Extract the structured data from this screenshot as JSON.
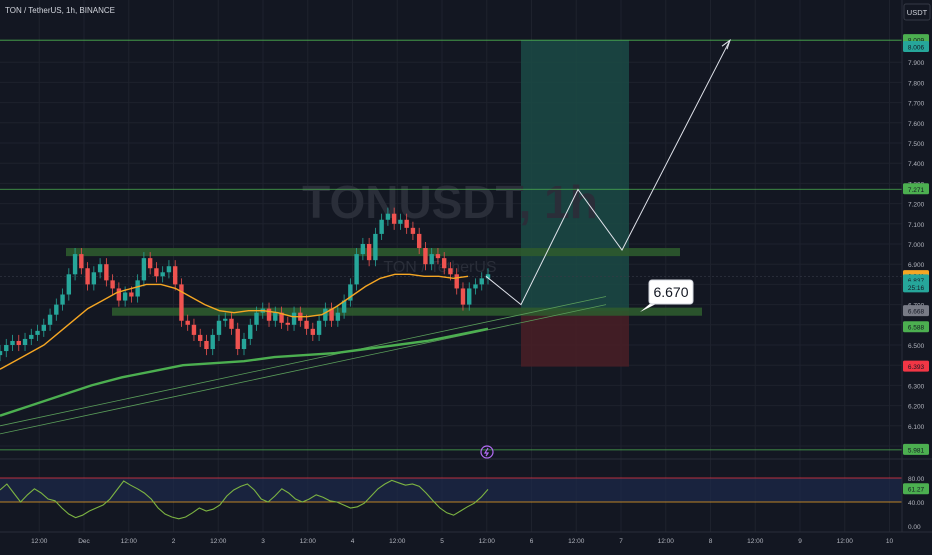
{
  "header": {
    "title": "TON / TetherUS, 1h, BINANCE",
    "currency": "USDT"
  },
  "watermark": {
    "symbol": "TONUSDT, 1h",
    "description": "TON / TetherUS"
  },
  "colors": {
    "background": "#131722",
    "grid": "#1e222d",
    "bull_candle": "#26a69a",
    "bear_candle": "#ef5350",
    "ema_fast": "#f5a623",
    "ema_slow": "#4caf50",
    "zone": "#2e5a2e",
    "target_zone": "#1b4a45",
    "stop_zone": "#4a1f26",
    "rsi_line": "#7cb342",
    "projection": "#e0e3eb"
  },
  "annotation": {
    "entry_label": "6.670",
    "event_icon": "lightning-icon"
  },
  "chart_data": {
    "type": "line",
    "title": "TON / TetherUS, 1h, BINANCE",
    "xlabel": "",
    "ylabel": "USDT",
    "ylim": [
      5.98,
      8.02
    ],
    "x_ticks": [
      "12:00",
      "Dec",
      "12:00",
      "2",
      "12:00",
      "3",
      "12:00",
      "4",
      "12:00",
      "5",
      "12:00",
      "6",
      "12:00",
      "7",
      "12:00",
      "8",
      "12:00",
      "9",
      "12:00",
      "10"
    ],
    "y_ticks": [
      "7.900",
      "7.800",
      "7.700",
      "7.600",
      "7.500",
      "7.400",
      "7.300",
      "7.200",
      "7.100",
      "7.000",
      "6.900",
      "6.800",
      "6.700",
      "6.600",
      "6.500",
      "6.400",
      "6.300",
      "6.200",
      "6.100",
      "6.000"
    ],
    "price_series": {
      "name": "",
      "values": [
        6.47,
        6.5,
        6.52,
        6.5,
        6.53,
        6.55,
        6.57,
        6.6,
        6.65,
        6.7,
        6.75,
        6.85,
        6.95,
        6.88,
        6.8,
        6.86,
        6.9,
        6.82,
        6.78,
        6.72,
        6.76,
        6.74,
        6.82,
        6.93,
        6.88,
        6.84,
        6.86,
        6.89,
        6.8,
        6.62,
        6.6,
        6.55,
        6.52,
        6.48,
        6.55,
        6.62,
        6.63,
        6.58,
        6.48,
        6.53,
        6.6,
        6.66,
        6.68,
        6.62,
        6.66,
        6.61,
        6.6,
        6.66,
        6.62,
        6.58,
        6.55,
        6.62,
        6.68,
        6.62,
        6.66,
        6.72,
        6.8,
        6.95,
        7.0,
        6.92,
        7.05,
        7.12,
        7.15,
        7.1,
        7.12,
        7.08,
        7.05,
        6.98,
        6.9,
        6.95,
        6.93,
        6.88,
        6.85,
        6.78,
        6.7,
        6.78,
        6.8,
        6.83,
        6.85
      ]
    },
    "ema_fast": {
      "name": "",
      "values": [
        6.38,
        6.42,
        6.46,
        6.5,
        6.56,
        6.62,
        6.68,
        6.72,
        6.76,
        6.78,
        6.8,
        6.8,
        6.78,
        6.74,
        6.7,
        6.67,
        6.66,
        6.67,
        6.67,
        6.66,
        6.64,
        6.64,
        6.65,
        6.69,
        6.74,
        6.79,
        6.83,
        6.85,
        6.85,
        6.84,
        6.84,
        6.83,
        6.84
      ]
    },
    "ema_slow": {
      "name": "",
      "values": [
        6.15,
        6.2,
        6.25,
        6.3,
        6.34,
        6.37,
        6.4,
        6.41,
        6.42,
        6.44,
        6.45,
        6.46,
        6.48,
        6.5,
        6.52,
        6.55,
        6.58
      ]
    },
    "levels": [
      {
        "label": "8.009",
        "value": 8.009,
        "color": "#4caf50"
      },
      {
        "label": "8.006",
        "value": 7.975,
        "color": "#26a69a"
      },
      {
        "label": "7.271",
        "value": 7.271,
        "color": "#4caf50"
      },
      {
        "label": "6.841",
        "value": 6.841,
        "color": "#f5a623"
      },
      {
        "label": "6.837",
        "value": 6.82,
        "color": "#26a69a"
      },
      {
        "label": "25:16",
        "value": 6.785,
        "color": "#26a69a"
      },
      {
        "label": "6.668",
        "value": 6.668,
        "color": "#787b86"
      },
      {
        "label": "6.588",
        "value": 6.588,
        "color": "#4caf50"
      },
      {
        "label": "6.393",
        "value": 6.393,
        "color": "#f23645"
      },
      {
        "label": "5.981",
        "value": 5.981,
        "color": "#4caf50"
      }
    ],
    "resistance_zone": [
      6.94,
      6.98
    ],
    "support_zone": [
      6.645,
      6.685
    ],
    "target_zone": [
      6.67,
      8.009
    ],
    "stop_zone": [
      6.393,
      6.67
    ],
    "projection_path": [
      {
        "x": "5 12:00",
        "y": 6.7
      },
      {
        "x": "6 12:00",
        "y": 7.27
      },
      {
        "x": "7",
        "y": 6.97
      },
      {
        "x": "7 12:00",
        "y": 8.009
      }
    ],
    "rsi": {
      "ylim": [
        0,
        100
      ],
      "y_ticks": [
        "80.00",
        "40.00",
        "0.00"
      ],
      "current_label": "61.27",
      "upper_band": 80,
      "lower_band": 40,
      "values": [
        60,
        70,
        55,
        40,
        52,
        62,
        55,
        45,
        42,
        30,
        20,
        14,
        18,
        25,
        30,
        35,
        45,
        60,
        75,
        68,
        62,
        55,
        45,
        30,
        20,
        15,
        12,
        15,
        22,
        30,
        25,
        28,
        35,
        50,
        60,
        66,
        70,
        60,
        45,
        40,
        50,
        62,
        55,
        45,
        40,
        45,
        52,
        48,
        42,
        40,
        35,
        30,
        32,
        38,
        50,
        62,
        70,
        76,
        72,
        68,
        70,
        66,
        55,
        42,
        30,
        22,
        18,
        25,
        32,
        38,
        48,
        61
      ]
    }
  }
}
